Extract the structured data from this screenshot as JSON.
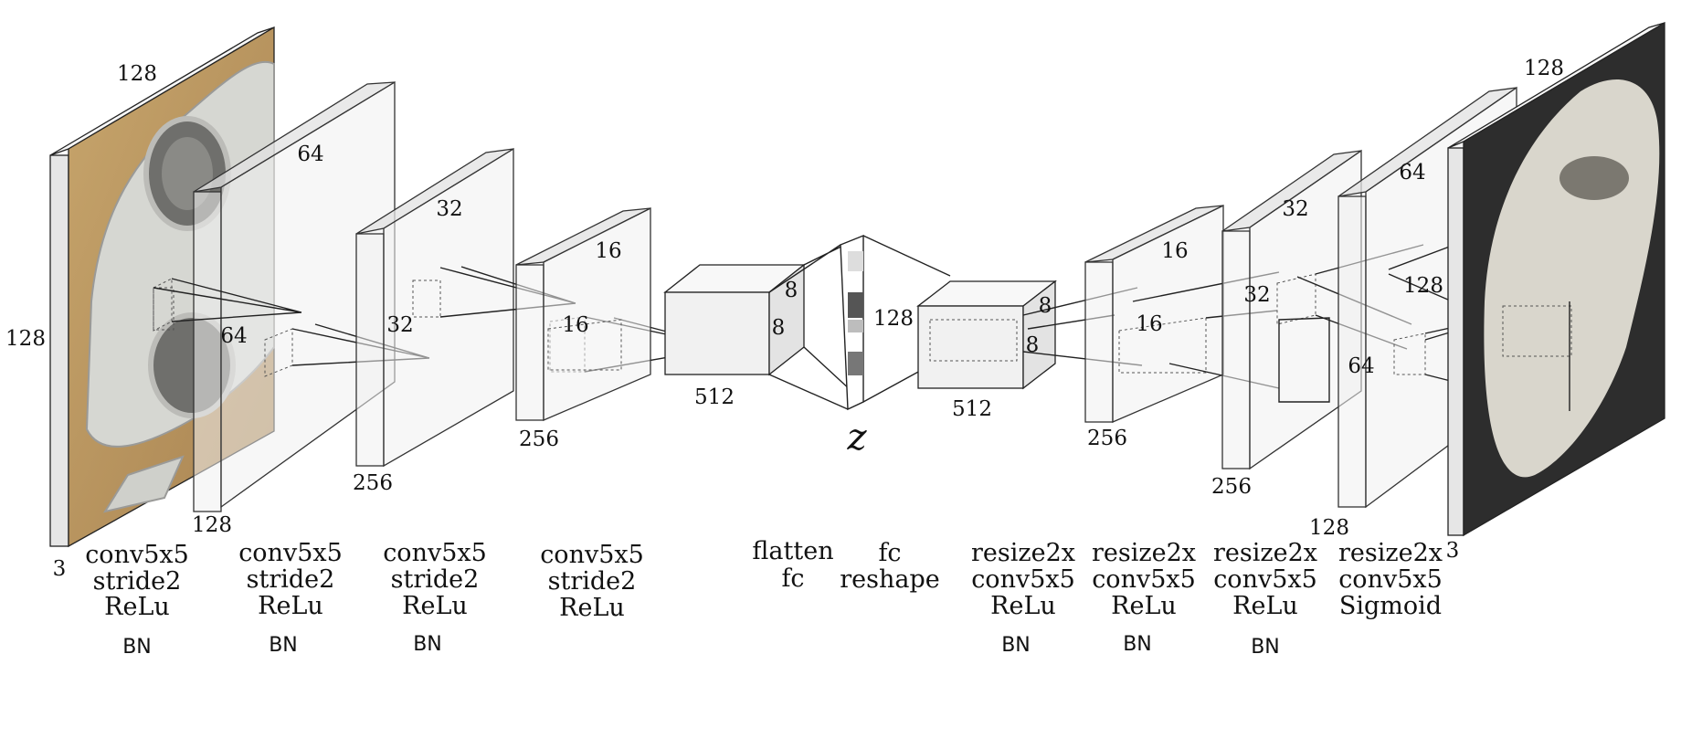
{
  "colors": {
    "input_photo_background": "#b9945e",
    "input_photo_object": "#d6d7d2",
    "output_background": "#2d2d2d",
    "output_object": "#d9d6cc"
  },
  "input_image": {
    "width": "128",
    "height": "128",
    "channels": "3"
  },
  "encoder": {
    "layers": [
      {
        "width": "128",
        "depth": "64",
        "in_size": "64"
      },
      {
        "width": "256",
        "depth": "32",
        "in_size": "32"
      },
      {
        "width": "256",
        "depth": "16",
        "in_size": "16"
      }
    ],
    "flat": {
      "depth": "8",
      "height": "8",
      "width": "512"
    }
  },
  "latent": {
    "size": "128",
    "symbol": "z"
  },
  "decoder": {
    "reshape": {
      "depth": "8",
      "height": "8",
      "width": "512"
    },
    "layers": [
      {
        "width": "256",
        "depth": "16",
        "in_size": "16"
      },
      {
        "width": "256",
        "depth": "32",
        "in_size": "32"
      },
      {
        "width": "128",
        "depth": "64",
        "in_size": "128",
        "in_size2": "64"
      }
    ]
  },
  "output_image": {
    "width": "128",
    "channels": "3"
  },
  "operations": [
    {
      "lines": [
        "conv5x5",
        "stride2",
        "ReLu"
      ],
      "bn": "BN"
    },
    {
      "lines": [
        "conv5x5",
        "stride2",
        "ReLu"
      ],
      "bn": "BN"
    },
    {
      "lines": [
        "conv5x5",
        "stride2",
        "ReLu"
      ],
      "bn": "BN"
    },
    {
      "lines": [
        "conv5x5",
        "stride2",
        "ReLu"
      ],
      "bn": ""
    },
    {
      "lines": [
        "flatten",
        "fc"
      ],
      "bn": ""
    },
    {
      "lines": [
        "fc",
        "reshape"
      ],
      "bn": ""
    },
    {
      "lines": [
        "resize2x",
        "conv5x5",
        "ReLu"
      ],
      "bn": "BN"
    },
    {
      "lines": [
        "resize2x",
        "conv5x5",
        "ReLu"
      ],
      "bn": "BN"
    },
    {
      "lines": [
        "resize2x",
        "conv5x5",
        "ReLu"
      ],
      "bn": "BN"
    },
    {
      "lines": [
        "resize2x",
        "conv5x5",
        "Sigmoid"
      ],
      "bn": ""
    }
  ]
}
